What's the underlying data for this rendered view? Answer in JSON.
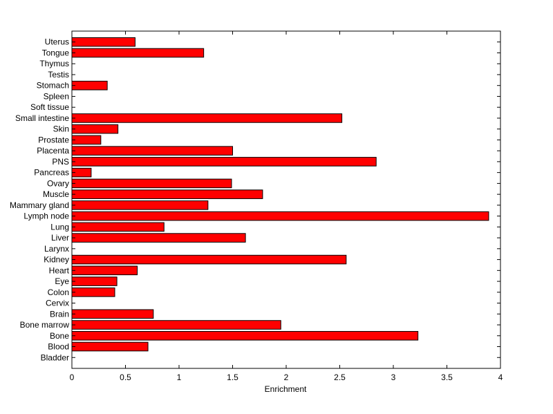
{
  "chart_data": {
    "type": "bar",
    "orientation": "horizontal",
    "categories": [
      "Bladder",
      "Blood",
      "Bone",
      "Bone marrow",
      "Brain",
      "Cervix",
      "Colon",
      "Eye",
      "Heart",
      "Kidney",
      "Larynx",
      "Liver",
      "Lung",
      "Lymph node",
      "Mammary gland",
      "Muscle",
      "Ovary",
      "Pancreas",
      "PNS",
      "Placenta",
      "Prostate",
      "Skin",
      "Small intestine",
      "Soft tissue",
      "Spleen",
      "Stomach",
      "Testis",
      "Thymus",
      "Tongue",
      "Uterus"
    ],
    "values": [
      0,
      0.71,
      3.23,
      1.95,
      0.76,
      0,
      0.4,
      0.42,
      0.61,
      2.56,
      0,
      1.62,
      0.86,
      3.89,
      1.27,
      1.78,
      1.49,
      0.18,
      2.84,
      1.5,
      0.27,
      0.43,
      2.52,
      0,
      0,
      0.33,
      0,
      0,
      1.23,
      0.59
    ],
    "title": "",
    "xlabel": "Enrichment",
    "ylabel": "",
    "xlim": [
      0,
      4
    ],
    "xticks": [
      "0",
      "0.5",
      "1",
      "1.5",
      "2",
      "2.5",
      "3",
      "3.5",
      "4"
    ],
    "bar_color": "#ff0000",
    "edge_color": "#000000",
    "grid": false,
    "legend": "none"
  }
}
